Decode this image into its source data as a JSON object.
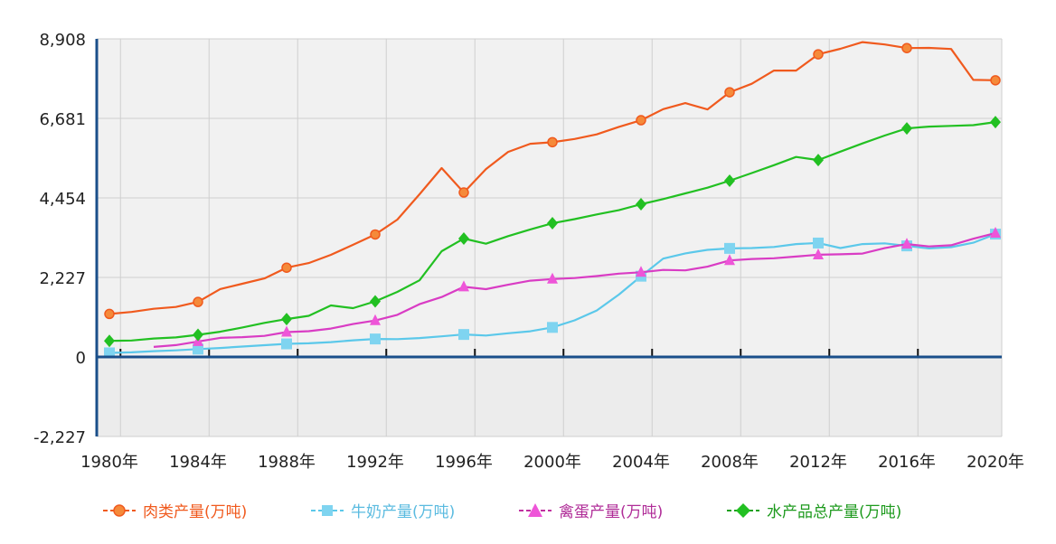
{
  "chart_data": {
    "type": "line",
    "title": "",
    "xlabel": "",
    "ylabel": "",
    "ylim": [
      -2227,
      8908
    ],
    "yticks": [
      "8,908",
      "6,681",
      "4,454",
      "2,227",
      "0",
      "-2,227"
    ],
    "ytick_values": [
      8908,
      6681,
      4454,
      2227,
      0,
      -2227
    ],
    "x": [
      1980,
      1981,
      1982,
      1983,
      1984,
      1985,
      1986,
      1987,
      1988,
      1989,
      1990,
      1991,
      1992,
      1993,
      1994,
      1995,
      1996,
      1997,
      1998,
      1999,
      2000,
      2001,
      2002,
      2003,
      2004,
      2005,
      2006,
      2007,
      2008,
      2009,
      2010,
      2011,
      2012,
      2013,
      2014,
      2015,
      2016,
      2017,
      2018,
      2019,
      2020
    ],
    "xtick_labels": [
      "1980年",
      "1984年",
      "1988年",
      "1992年",
      "1996年",
      "2000年",
      "2004年",
      "2008年",
      "2012年",
      "2016年",
      "2020年"
    ],
    "xtick_years": [
      1980,
      1984,
      1988,
      1992,
      1996,
      2000,
      2004,
      2008,
      2012,
      2016,
      2020
    ],
    "grid": true,
    "legend_placement": "bottom",
    "series": [
      {
        "name": "肉类产量(万吨)",
        "color": "#f05a1e",
        "marker": "circle",
        "values": [
          1205,
          1260,
          1350,
          1400,
          1540,
          1900,
          2050,
          2200,
          2500,
          2630,
          2860,
          3140,
          3430,
          3846,
          4554,
          5288,
          4605,
          5262,
          5743,
          5971,
          6014,
          6105,
          6234,
          6443,
          6629,
          6939,
          7109,
          6932,
          7413,
          7650,
          8020,
          8020,
          8476,
          8630,
          8818,
          8750,
          8650,
          8654,
          8624,
          7758,
          7748
        ]
      },
      {
        "name": "牛奶产量(万吨)",
        "color": "#5bc8ea",
        "marker": "square",
        "values": [
          114,
          129,
          162,
          185,
          219,
          250,
          290,
          329,
          366,
          381,
          416,
          465,
          503,
          499,
          529,
          576,
          629,
          601,
          663,
          718,
          827,
          1025,
          1300,
          1746,
          2261,
          2753,
          2900,
          3000,
          3040,
          3050,
          3080,
          3160,
          3190,
          3050,
          3160,
          3180,
          3110,
          3040,
          3075,
          3200,
          3440
        ]
      },
      {
        "name": "禽蛋产量(万吨)",
        "color": "#d93cc4",
        "marker": "triangle",
        "values": [
          null,
          null,
          281,
          332,
          432,
          535,
          555,
          590,
          695,
          720,
          795,
          922,
          1020,
          1180,
          1479,
          1677,
          1965,
          1897,
          2021,
          2135,
          2182,
          2210,
          2266,
          2333,
          2371,
          2438,
          2424,
          2529,
          2702,
          2743,
          2763,
          2811,
          2861,
          2876,
          2894,
          3046,
          3161,
          3096,
          3128,
          3309,
          3468
        ]
      },
      {
        "name": "水产品总产量(万吨)",
        "color": "#22c022",
        "marker": "diamond",
        "values": [
          450,
          461,
          516,
          546,
          619,
          705,
          824,
          955,
          1061,
          1152,
          1442,
          1366,
          1557,
          1823,
          2146,
          2960,
          3314,
          3170,
          3383,
          3570,
          3744,
          3860,
          3990,
          4110,
          4276,
          4420,
          4580,
          4740,
          4934,
          5150,
          5370,
          5600,
          5515,
          5750,
          5980,
          6200,
          6400,
          6450,
          6470,
          6490,
          6578
        ]
      }
    ]
  },
  "colors": {
    "axis": "#1a4f8a",
    "grid": "#cfcfcf",
    "plot_bg": "#f1f1f1"
  }
}
